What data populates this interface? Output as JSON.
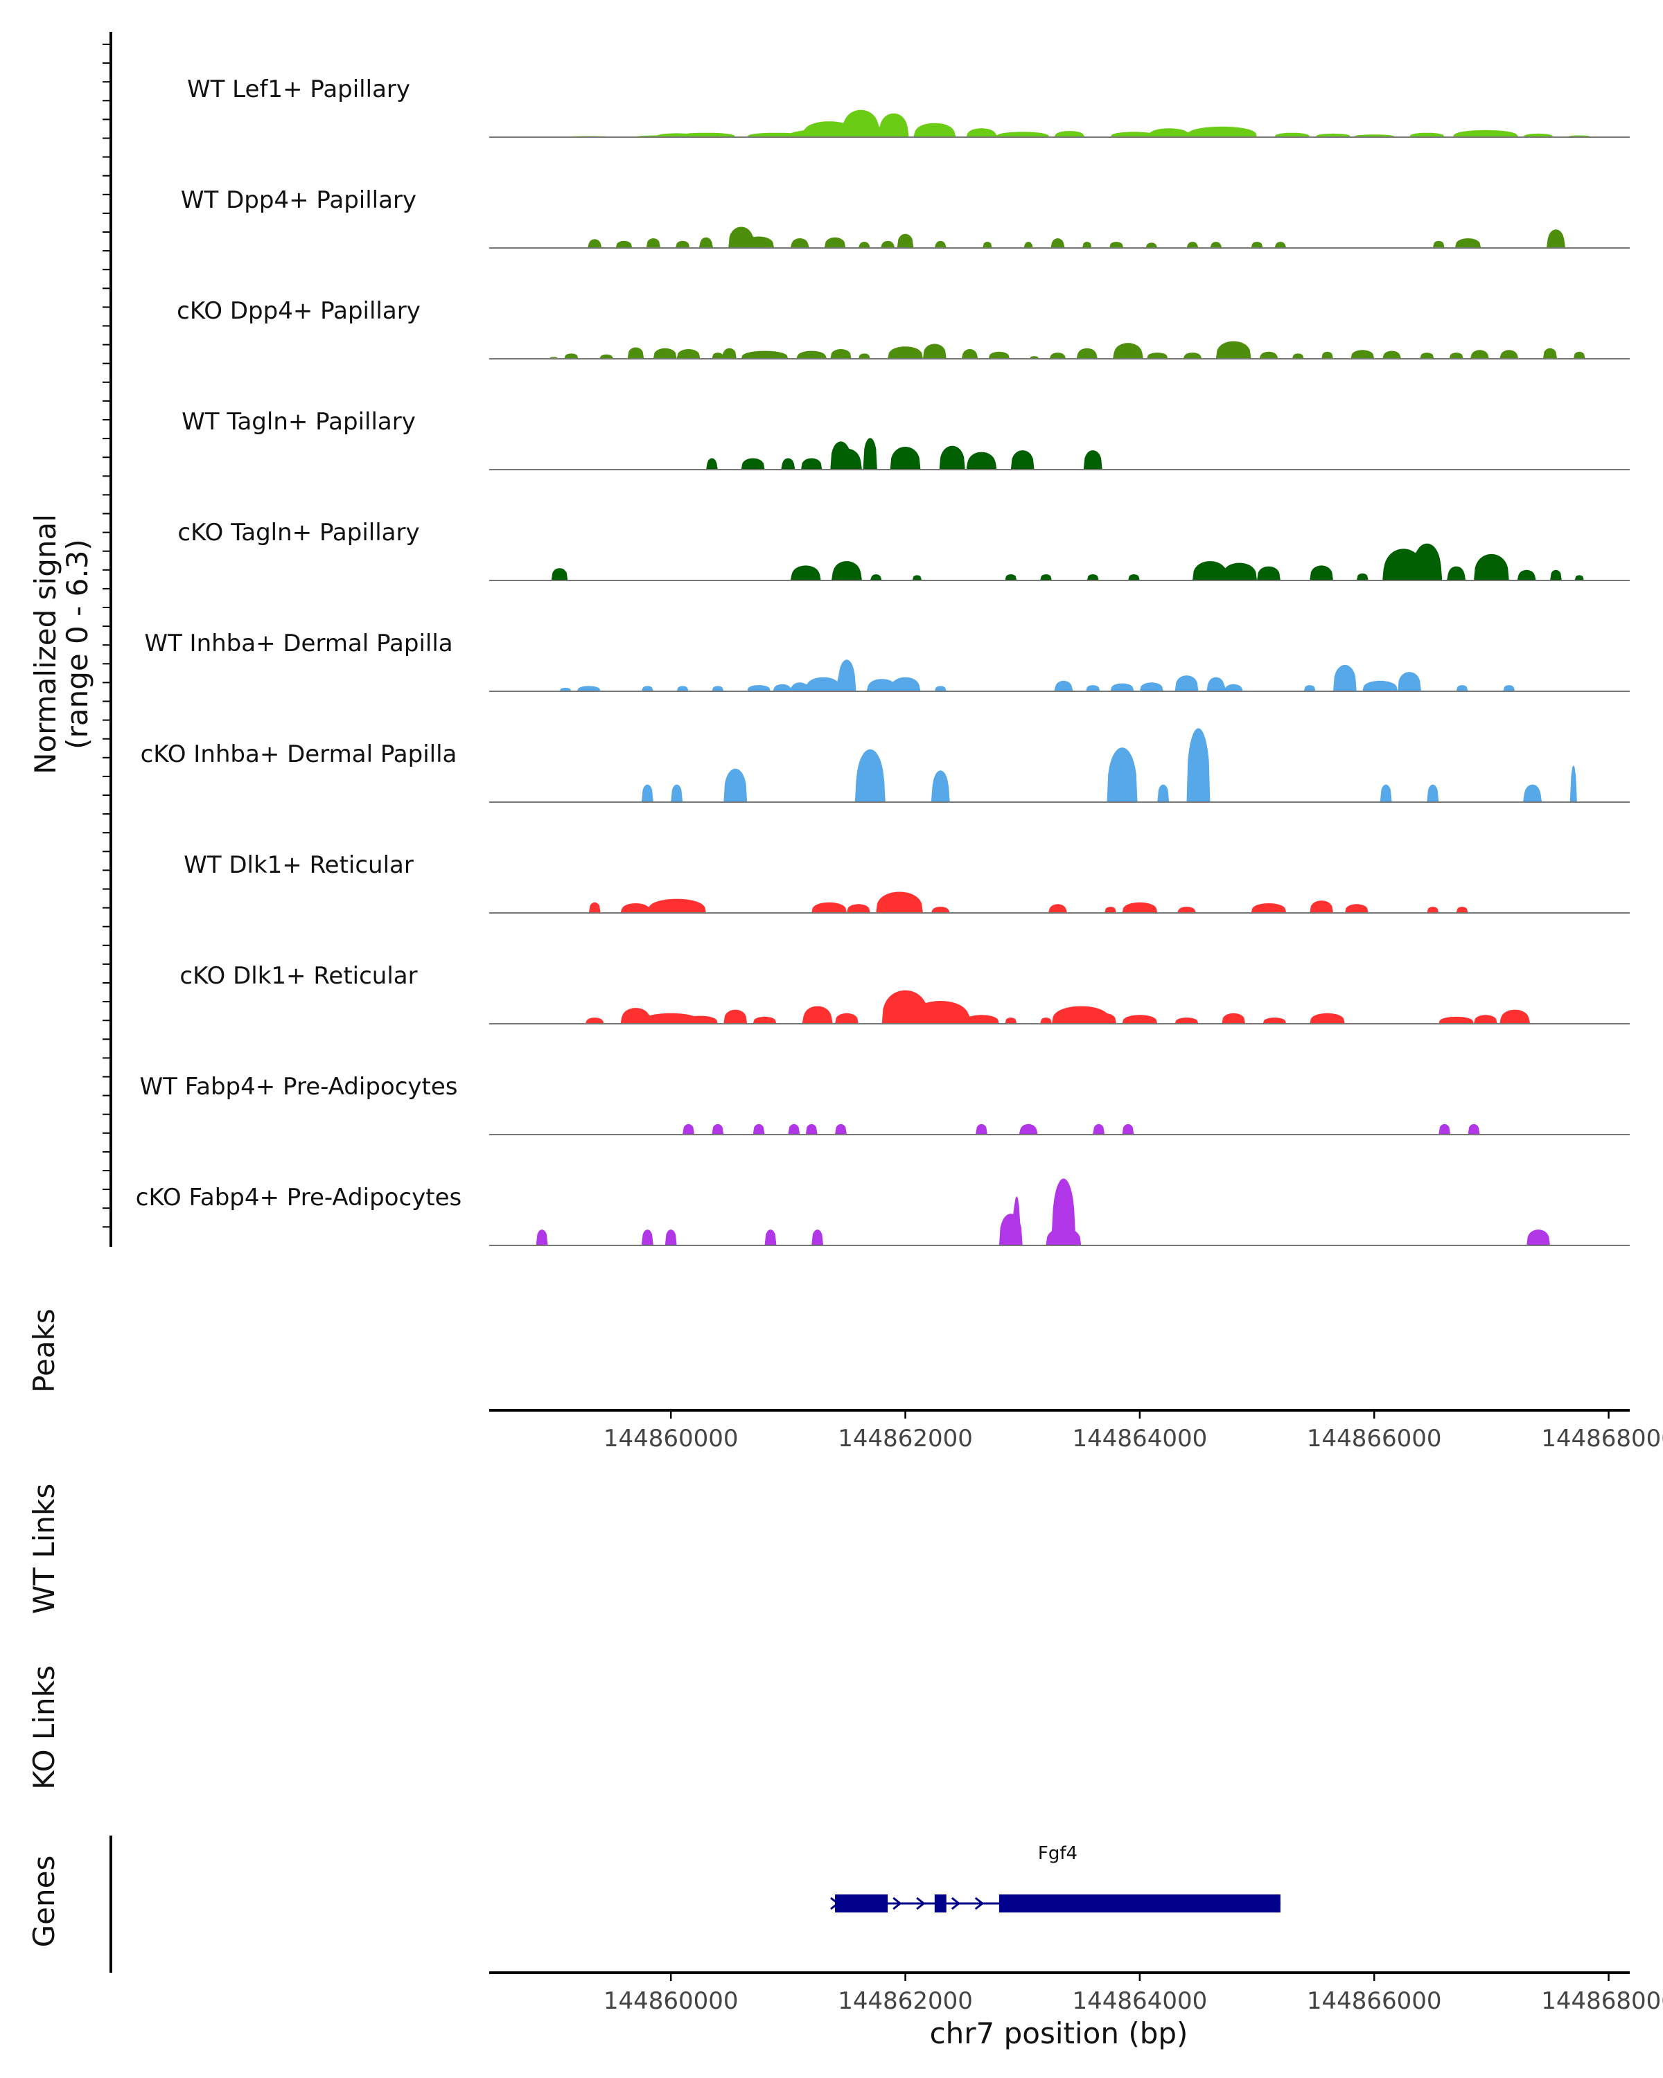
{
  "chart_data": {
    "type": "area",
    "title": "",
    "region": {
      "chrom": "chr7",
      "start": 144858450,
      "end": 144868180
    },
    "ylabel": "Normalized signal",
    "ylabel_range": "(range 0 - 6.3)",
    "ylim": [
      0,
      6.3
    ],
    "xlabel": "chr7 position (bp)",
    "x_ticks": [
      144860000,
      144862000,
      144864000,
      144866000,
      144868000
    ],
    "x_tick_labels": [
      "144860000",
      "144862000",
      "144864000",
      "144866000",
      "144868000"
    ],
    "track_labels": {
      "peaks": "Peaks",
      "wt_links": "WT Links",
      "ko_links": "KO Links",
      "genes": "Genes"
    },
    "series": [
      {
        "name": "WT Lef1+ Papillary",
        "color": "#6ACC14",
        "peaks": [
          [
            144859300,
            0.06,
            350
          ],
          [
            144859900,
            0.1,
            400
          ],
          [
            144860050,
            0.22,
            350
          ],
          [
            144860300,
            0.25,
            500
          ],
          [
            144860900,
            0.25,
            500
          ],
          [
            144861350,
            0.9,
            450
          ],
          [
            144861620,
            1.55,
            320
          ],
          [
            144861900,
            1.35,
            250
          ],
          [
            144861350,
            0.45,
            700
          ],
          [
            144862250,
            0.8,
            350
          ],
          [
            144862650,
            0.5,
            250
          ],
          [
            144863000,
            0.3,
            450
          ],
          [
            144863400,
            0.35,
            250
          ],
          [
            144863950,
            0.3,
            400
          ],
          [
            144864250,
            0.5,
            350
          ],
          [
            144864700,
            0.6,
            600
          ],
          [
            144865300,
            0.25,
            300
          ],
          [
            144865650,
            0.2,
            300
          ],
          [
            144866000,
            0.15,
            350
          ],
          [
            144866450,
            0.25,
            300
          ],
          [
            144866950,
            0.4,
            550
          ],
          [
            144867400,
            0.2,
            250
          ],
          [
            144867750,
            0.1,
            200
          ]
        ]
      },
      {
        "name": "WT Dpp4+ Papillary",
        "color": "#4D8F0C",
        "peaks": [
          [
            144859350,
            0.5,
            110
          ],
          [
            144859600,
            0.4,
            140
          ],
          [
            144859850,
            0.55,
            120
          ],
          [
            144860100,
            0.4,
            120
          ],
          [
            144860300,
            0.6,
            110
          ],
          [
            144860600,
            1.2,
            220
          ],
          [
            144860750,
            0.65,
            260
          ],
          [
            144861100,
            0.55,
            150
          ],
          [
            144861400,
            0.6,
            180
          ],
          [
            144861650,
            0.35,
            90
          ],
          [
            144861850,
            0.4,
            110
          ],
          [
            144862000,
            0.8,
            140
          ],
          [
            144862300,
            0.4,
            90
          ],
          [
            144862700,
            0.35,
            80
          ],
          [
            144863050,
            0.35,
            70
          ],
          [
            144863300,
            0.55,
            110
          ],
          [
            144863550,
            0.35,
            80
          ],
          [
            144863800,
            0.35,
            120
          ],
          [
            144864100,
            0.3,
            90
          ],
          [
            144864450,
            0.35,
            90
          ],
          [
            144864650,
            0.35,
            90
          ],
          [
            144865000,
            0.35,
            100
          ],
          [
            144865200,
            0.35,
            90
          ],
          [
            144866550,
            0.4,
            100
          ],
          [
            144866800,
            0.55,
            220
          ],
          [
            144867550,
            1.05,
            150
          ]
        ]
      },
      {
        "name": "cKO Dpp4+ Papillary",
        "color": "#4D8F0C",
        "peaks": [
          [
            144859000,
            0.1,
            80
          ],
          [
            144859150,
            0.3,
            120
          ],
          [
            144859450,
            0.25,
            110
          ],
          [
            144859700,
            0.65,
            140
          ],
          [
            144859950,
            0.6,
            200
          ],
          [
            144860150,
            0.55,
            200
          ],
          [
            144860400,
            0.35,
            100
          ],
          [
            144860500,
            0.6,
            120
          ],
          [
            144860800,
            0.45,
            400
          ],
          [
            144861200,
            0.45,
            250
          ],
          [
            144861450,
            0.55,
            180
          ],
          [
            144861650,
            0.3,
            100
          ],
          [
            144862000,
            0.7,
            300
          ],
          [
            144862250,
            0.85,
            200
          ],
          [
            144862550,
            0.55,
            130
          ],
          [
            144862800,
            0.4,
            180
          ],
          [
            144863100,
            0.15,
            80
          ],
          [
            144863300,
            0.35,
            130
          ],
          [
            144863550,
            0.6,
            170
          ],
          [
            144863900,
            0.9,
            250
          ],
          [
            144864150,
            0.35,
            180
          ],
          [
            144864450,
            0.35,
            150
          ],
          [
            144864800,
            1.0,
            300
          ],
          [
            144865100,
            0.4,
            150
          ],
          [
            144865350,
            0.3,
            100
          ],
          [
            144865600,
            0.4,
            100
          ],
          [
            144865900,
            0.5,
            200
          ],
          [
            144866150,
            0.45,
            150
          ],
          [
            144866450,
            0.35,
            120
          ],
          [
            144866700,
            0.35,
            120
          ],
          [
            144866900,
            0.5,
            150
          ],
          [
            144867150,
            0.5,
            150
          ],
          [
            144867500,
            0.6,
            120
          ],
          [
            144867750,
            0.4,
            100
          ]
        ]
      },
      {
        "name": "WT Tagln+ Papillary",
        "color": "#005F00",
        "peaks": [
          [
            144860350,
            0.65,
            90
          ],
          [
            144860700,
            0.65,
            200
          ],
          [
            144861000,
            0.65,
            110
          ],
          [
            144861200,
            0.65,
            180
          ],
          [
            144861450,
            1.6,
            180
          ],
          [
            144861700,
            1.8,
            120
          ],
          [
            144861500,
            1.2,
            250
          ],
          [
            144862000,
            1.3,
            260
          ],
          [
            144862400,
            1.35,
            220
          ],
          [
            144862650,
            1.0,
            250
          ],
          [
            144863000,
            1.1,
            200
          ],
          [
            144863600,
            1.1,
            160
          ]
        ]
      },
      {
        "name": "cKO Tagln+ Papillary",
        "color": "#005F00",
        "peaks": [
          [
            144859050,
            0.7,
            140
          ],
          [
            144861150,
            0.85,
            250
          ],
          [
            144861500,
            1.1,
            250
          ],
          [
            144861750,
            0.35,
            90
          ],
          [
            144862100,
            0.3,
            80
          ],
          [
            144862900,
            0.35,
            100
          ],
          [
            144863200,
            0.35,
            100
          ],
          [
            144863600,
            0.35,
            100
          ],
          [
            144863950,
            0.35,
            100
          ],
          [
            144864600,
            1.1,
            300
          ],
          [
            144864850,
            1.0,
            300
          ],
          [
            144865100,
            0.8,
            200
          ],
          [
            144865550,
            0.85,
            200
          ],
          [
            144865900,
            0.4,
            100
          ],
          [
            144866250,
            1.8,
            350
          ],
          [
            144866450,
            2.1,
            250
          ],
          [
            144866700,
            0.8,
            150
          ],
          [
            144867000,
            1.5,
            300
          ],
          [
            144867300,
            0.6,
            150
          ],
          [
            144867550,
            0.6,
            100
          ],
          [
            144867750,
            0.3,
            80
          ]
        ]
      },
      {
        "name": "WT Inhba+ Dermal Papilla",
        "color": "#56A8E8",
        "peaks": [
          [
            144859100,
            0.2,
            100
          ],
          [
            144859300,
            0.3,
            200
          ],
          [
            144859800,
            0.3,
            100
          ],
          [
            144860100,
            0.3,
            100
          ],
          [
            144860400,
            0.3,
            100
          ],
          [
            144860750,
            0.35,
            200
          ],
          [
            144860950,
            0.4,
            150
          ],
          [
            144861100,
            0.5,
            150
          ],
          [
            144861300,
            0.8,
            300
          ],
          [
            144861500,
            1.8,
            150
          ],
          [
            144861800,
            0.7,
            250
          ],
          [
            144862000,
            0.8,
            250
          ],
          [
            144862300,
            0.3,
            100
          ],
          [
            144863350,
            0.6,
            150
          ],
          [
            144863600,
            0.35,
            120
          ],
          [
            144863850,
            0.45,
            200
          ],
          [
            144864100,
            0.5,
            200
          ],
          [
            144864400,
            0.9,
            200
          ],
          [
            144864650,
            0.8,
            150
          ],
          [
            144864800,
            0.4,
            150
          ],
          [
            144865450,
            0.35,
            100
          ],
          [
            144865750,
            1.5,
            200
          ],
          [
            144866050,
            0.6,
            300
          ],
          [
            144866300,
            1.1,
            200
          ],
          [
            144866750,
            0.35,
            100
          ],
          [
            144867150,
            0.35,
            100
          ]
        ]
      },
      {
        "name": "cKO Inhba+ Dermal Papilla",
        "color": "#56A8E8",
        "peaks": [
          [
            144859800,
            1.0,
            100
          ],
          [
            144860050,
            1.0,
            100
          ],
          [
            144860550,
            1.9,
            200
          ],
          [
            144861700,
            3.0,
            250
          ],
          [
            144862300,
            1.8,
            150
          ],
          [
            144863850,
            3.1,
            260
          ],
          [
            144864200,
            1.0,
            100
          ],
          [
            144864500,
            4.2,
            200
          ],
          [
            144866100,
            1.0,
            100
          ],
          [
            144866500,
            1.0,
            100
          ],
          [
            144867350,
            1.0,
            150
          ],
          [
            144867700,
            2.1,
            50
          ]
        ]
      },
      {
        "name": "WT Dlk1+ Reticular",
        "color": "#FF3030",
        "peaks": [
          [
            144859350,
            0.6,
            100
          ],
          [
            144859700,
            0.55,
            250
          ],
          [
            144860050,
            0.8,
            500
          ],
          [
            144861350,
            0.6,
            300
          ],
          [
            144861600,
            0.5,
            200
          ],
          [
            144861950,
            1.2,
            400
          ],
          [
            144862300,
            0.35,
            150
          ],
          [
            144863300,
            0.5,
            150
          ],
          [
            144863750,
            0.35,
            100
          ],
          [
            144864000,
            0.6,
            300
          ],
          [
            144864400,
            0.35,
            150
          ],
          [
            144865100,
            0.55,
            300
          ],
          [
            144865550,
            0.7,
            200
          ],
          [
            144865850,
            0.5,
            200
          ],
          [
            144866500,
            0.35,
            100
          ],
          [
            144866750,
            0.35,
            100
          ]
        ]
      },
      {
        "name": "cKO Dlk1+ Reticular",
        "color": "#FF3030",
        "peaks": [
          [
            144859350,
            0.35,
            150
          ],
          [
            144859700,
            0.9,
            250
          ],
          [
            144860000,
            0.6,
            500
          ],
          [
            144860250,
            0.45,
            300
          ],
          [
            144860550,
            0.8,
            200
          ],
          [
            144860800,
            0.4,
            200
          ],
          [
            144861250,
            1.0,
            250
          ],
          [
            144861500,
            0.6,
            200
          ],
          [
            144862000,
            1.9,
            400
          ],
          [
            144862300,
            1.3,
            500
          ],
          [
            144862650,
            0.5,
            300
          ],
          [
            144862900,
            0.35,
            100
          ],
          [
            144863200,
            0.35,
            100
          ],
          [
            144863500,
            1.0,
            500
          ],
          [
            144863700,
            0.6,
            200
          ],
          [
            144864000,
            0.5,
            300
          ],
          [
            144864400,
            0.35,
            200
          ],
          [
            144864800,
            0.6,
            200
          ],
          [
            144865150,
            0.35,
            200
          ],
          [
            144865600,
            0.6,
            300
          ],
          [
            144866700,
            0.4,
            300
          ],
          [
            144866950,
            0.5,
            200
          ],
          [
            144867200,
            0.8,
            250
          ]
        ]
      },
      {
        "name": "WT Fabp4+ Pre-Adipocytes",
        "color": "#B036E8",
        "peaks": [
          [
            144860150,
            0.6,
            100
          ],
          [
            144860400,
            0.6,
            100
          ],
          [
            144860750,
            0.6,
            100
          ],
          [
            144861050,
            0.6,
            100
          ],
          [
            144861200,
            0.6,
            100
          ],
          [
            144861450,
            0.6,
            100
          ],
          [
            144862650,
            0.6,
            100
          ],
          [
            144863050,
            0.6,
            150
          ],
          [
            144863650,
            0.6,
            100
          ],
          [
            144863900,
            0.6,
            100
          ],
          [
            144866600,
            0.6,
            100
          ],
          [
            144866850,
            0.6,
            100
          ]
        ]
      },
      {
        "name": "cKO Fabp4+ Pre-Adipocytes",
        "color": "#B036E8",
        "peaks": [
          [
            144858900,
            0.9,
            100
          ],
          [
            144859800,
            0.9,
            100
          ],
          [
            144860000,
            0.9,
            100
          ],
          [
            144860850,
            0.9,
            100
          ],
          [
            144861250,
            0.9,
            100
          ],
          [
            144862900,
            1.8,
            200
          ],
          [
            144862950,
            2.8,
            60
          ],
          [
            144863350,
            3.8,
            200
          ],
          [
            144863350,
            1.0,
            300
          ],
          [
            144867400,
            0.9,
            200
          ]
        ]
      }
    ],
    "genes": [
      {
        "name": "Fgf4",
        "strand": "+",
        "start": 144861400,
        "end": 144865200,
        "exons": [
          [
            144861400,
            144861850
          ],
          [
            144862250,
            144862350
          ],
          [
            144862800,
            144865200
          ]
        ]
      }
    ]
  }
}
